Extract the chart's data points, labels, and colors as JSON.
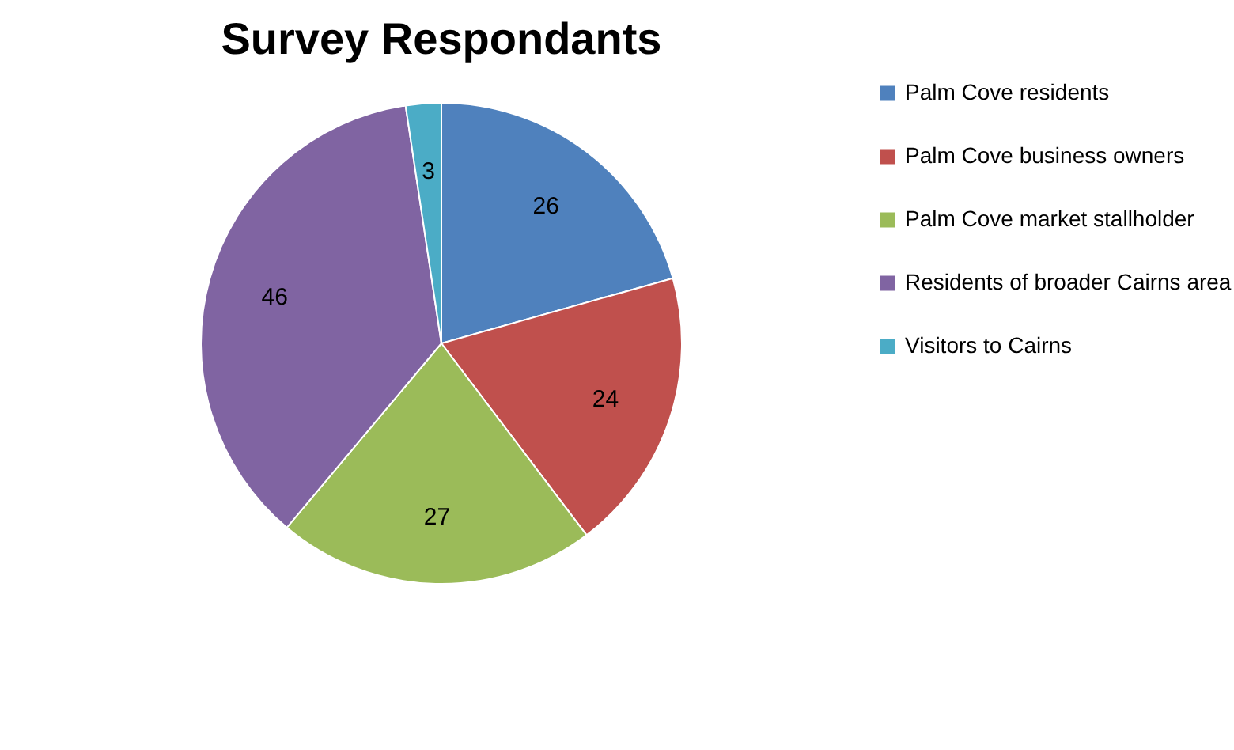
{
  "chart_data": {
    "type": "pie",
    "title": "Survey Respondants",
    "categories": [
      "Palm Cove residents",
      "Palm Cove business owners",
      "Palm Cove  market stallholder",
      "Residents of broader Cairns area",
      "Visitors to Cairns"
    ],
    "values": [
      26,
      24,
      27,
      46,
      3
    ],
    "colors": [
      "#4f81bd",
      "#c0504d",
      "#9bbb59",
      "#8064a2",
      "#4bacc6"
    ],
    "data_labels": true,
    "legend": "right"
  }
}
